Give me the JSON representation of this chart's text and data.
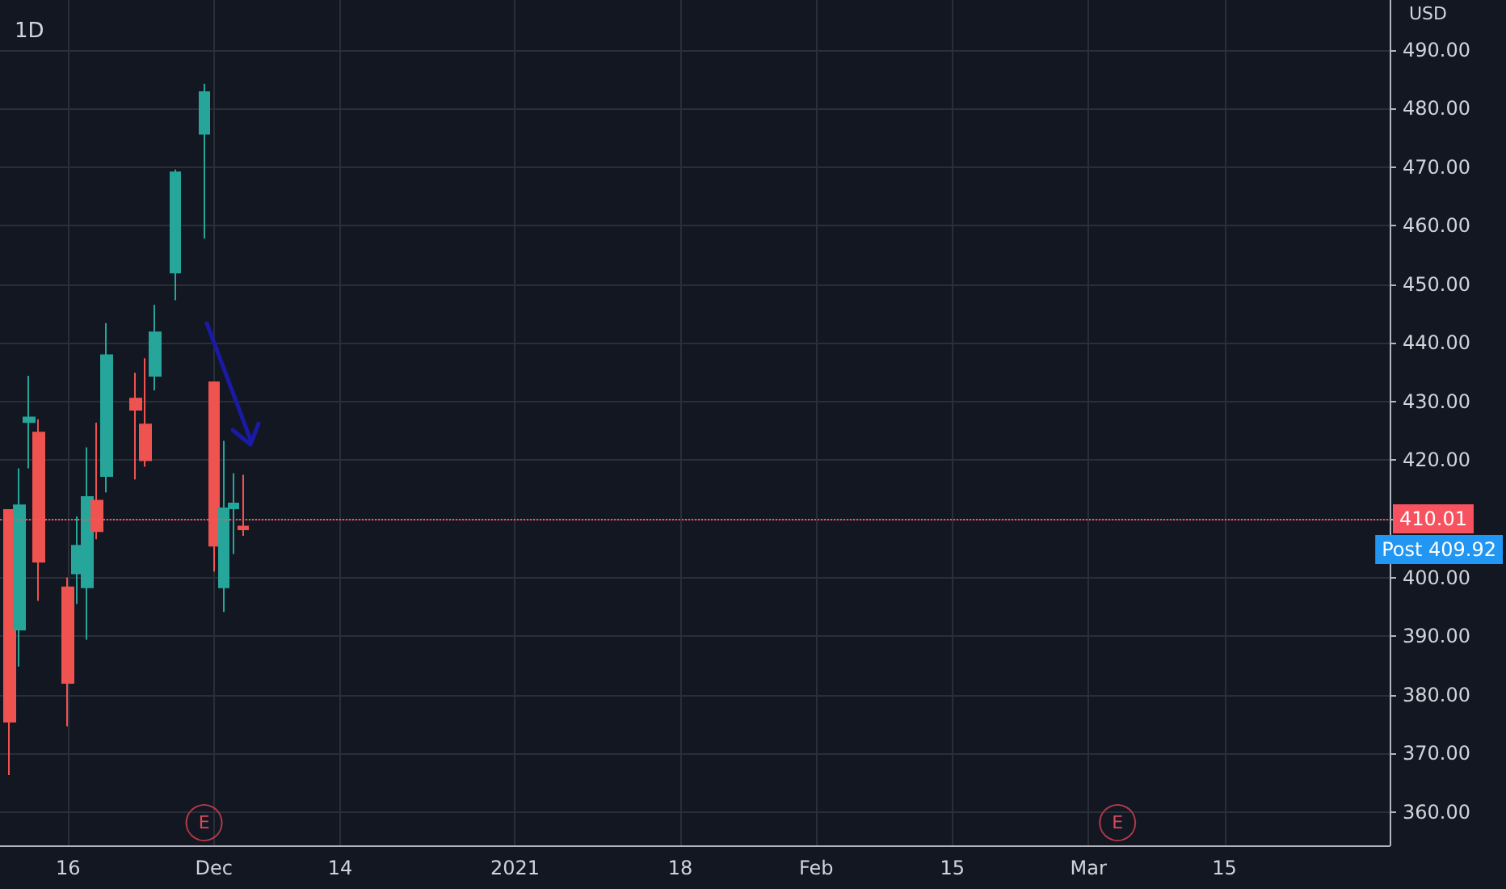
{
  "chart_data": {
    "type": "candlestick",
    "title": "1D",
    "ylabel": "USD",
    "x": [
      "2020-11-10",
      "2020-11-11",
      "2020-11-12",
      "2020-11-13",
      "2020-11-16",
      "2020-11-17",
      "2020-11-18",
      "2020-11-19",
      "2020-11-20",
      "2020-11-23",
      "2020-11-24",
      "2020-11-25",
      "2020-11-27",
      "2020-11-30",
      "2020-12-01",
      "2020-12-02",
      "2020-12-03",
      "2020-12-04"
    ],
    "ohlc": [
      [
        411.5,
        411.5,
        366.3,
        375.4
      ],
      [
        391.1,
        418.6,
        384.8,
        412.3
      ],
      [
        426.5,
        434.4,
        418.6,
        427.3
      ],
      [
        424.7,
        427.0,
        396.0,
        402.7
      ],
      [
        398.3,
        400.0,
        374.6,
        382.0
      ],
      [
        400.7,
        410.4,
        395.5,
        405.4
      ],
      [
        398.3,
        422.2,
        389.4,
        413.7
      ],
      [
        413.1,
        426.4,
        406.5,
        407.9
      ],
      [
        417.3,
        443.4,
        414.5,
        437.9
      ],
      [
        430.5,
        434.9,
        416.7,
        428.6
      ],
      [
        426.1,
        437.4,
        418.9,
        420.0
      ],
      [
        434.4,
        446.5,
        431.9,
        441.8
      ],
      [
        452.0,
        469.6,
        447.3,
        469.1
      ],
      [
        475.7,
        484.2,
        457.8,
        482.8
      ],
      [
        433.3,
        433.3,
        401.0,
        405.4
      ],
      [
        398.3,
        423.3,
        394.1,
        411.8
      ],
      [
        411.8,
        417.8,
        404.0,
        412.6
      ],
      [
        408.7,
        417.5,
        407.1,
        408.2
      ]
    ],
    "colors": [
      "#ef5350",
      "#26a69a",
      "#26a69a",
      "#ef5350",
      "#ef5350",
      "#26a69a",
      "#26a69a",
      "#ef5350",
      "#26a69a",
      "#ef5350",
      "#ef5350",
      "#26a69a",
      "#26a69a",
      "#26a69a",
      "#ef5350",
      "#26a69a",
      "#26a69a",
      "#ef5350"
    ],
    "xlim": [
      "2020-11-09",
      "2021-04-01"
    ],
    "xticks": [
      {
        "value": "2020-11-16",
        "label": "16"
      },
      {
        "value": "2020-12-01",
        "label": "Dec"
      },
      {
        "value": "2020-12-14",
        "label": "14"
      },
      {
        "value": "2021-01-01",
        "label": "2021"
      },
      {
        "value": "2021-01-18",
        "label": "18"
      },
      {
        "value": "2021-02-01",
        "label": "Feb"
      },
      {
        "value": "2021-02-15",
        "label": "15"
      },
      {
        "value": "2021-03-01",
        "label": "Mar"
      },
      {
        "value": "2021-03-15",
        "label": "15"
      }
    ],
    "ylim": [
      354.3,
      498.5
    ],
    "yticks": [
      {
        "value": 360,
        "label": "360.00"
      },
      {
        "value": 370,
        "label": "370.00"
      },
      {
        "value": 380,
        "label": "380.00"
      },
      {
        "value": 390,
        "label": "390.00"
      },
      {
        "value": 400,
        "label": "400.00"
      },
      {
        "value": 410,
        "label": null
      },
      {
        "value": 420,
        "label": "420.00"
      },
      {
        "value": 430,
        "label": "430.00"
      },
      {
        "value": 440,
        "label": "440.00"
      },
      {
        "value": 450,
        "label": "450.00"
      },
      {
        "value": 460,
        "label": "460.00"
      },
      {
        "value": 470,
        "label": "470.00"
      },
      {
        "value": 480,
        "label": "480.00"
      },
      {
        "value": 490,
        "label": "490.00"
      }
    ],
    "ref_lines": [
      {
        "axis": "y",
        "value": 410.01,
        "label": "410.01",
        "color": "#f7525f",
        "line_style": "dotted"
      }
    ],
    "annotations": [
      {
        "text": "E",
        "x": "2020-11-30"
      },
      {
        "text": "E",
        "x": "2021-03-04"
      },
      "Post 409.92"
    ],
    "grid": true
  }
}
